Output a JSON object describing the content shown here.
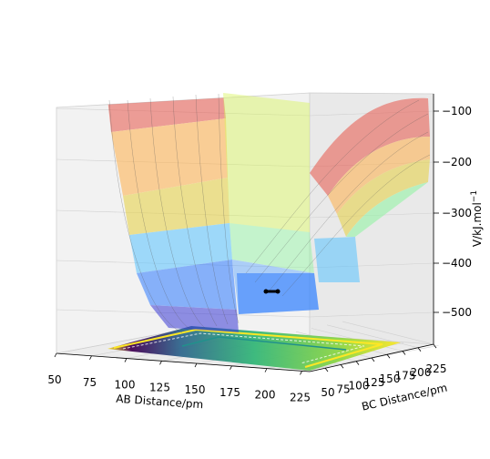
{
  "chart_data": {
    "type": "surface3d",
    "title": "",
    "xlabel": "AB Distance/pm",
    "ylabel": "BC Distance/pm",
    "zlabel": "V/kJ.mol$^{-1}$",
    "zlabel_display": "V/kJ.mol",
    "zlabel_superscript": "−1",
    "x_ticks": [
      "50",
      "75",
      "100",
      "125",
      "150",
      "175",
      "200",
      "225"
    ],
    "y_ticks": [
      "50",
      "75",
      "100",
      "125",
      "150",
      "175",
      "200",
      "225"
    ],
    "z_ticks": [
      "−100",
      "−200",
      "−300",
      "−400",
      "−500"
    ],
    "xlim": [
      50,
      240
    ],
    "ylim": [
      50,
      240
    ],
    "zlim": [
      -560,
      -60
    ],
    "surface_bands": [
      {
        "z_from": -560,
        "z_to": -470,
        "color": "#3b3bd6"
      },
      {
        "z_from": -470,
        "z_to": -400,
        "color": "#2f7bff"
      },
      {
        "z_from": -400,
        "z_to": -350,
        "color": "#59c3ff"
      },
      {
        "z_from": -350,
        "z_to": -250,
        "color": "#8ef5a0"
      },
      {
        "z_from": -250,
        "z_to": -180,
        "color": "#d8f55a"
      },
      {
        "z_from": -180,
        "z_to": -120,
        "color": "#ffd24a"
      },
      {
        "z_from": -120,
        "z_to": -60,
        "color": "#e8564a"
      }
    ],
    "trajectory": {
      "x": [
        150,
        175
      ],
      "y": [
        175,
        175
      ],
      "z": [
        -458,
        -458
      ],
      "color": "#000000"
    },
    "contour_floor": {
      "colormap": "viridis",
      "z": -560
    },
    "grid": true
  }
}
